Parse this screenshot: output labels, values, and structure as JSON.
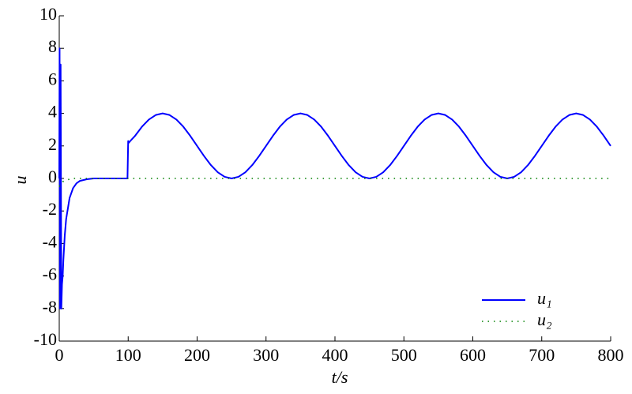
{
  "chart_data": {
    "type": "line",
    "xlabel": "t/s",
    "ylabel": "u",
    "xlim": [
      0,
      800
    ],
    "ylim": [
      -10,
      10
    ],
    "xticks": [
      0,
      100,
      200,
      300,
      400,
      500,
      600,
      700,
      800
    ],
    "yticks": [
      -10,
      -8,
      -6,
      -4,
      -2,
      0,
      2,
      4,
      6,
      8,
      10
    ],
    "legend": "lower right",
    "grid": false,
    "series": [
      {
        "name": "u₁",
        "color": "#0000ff",
        "style": "solid",
        "x": [
          0,
          0.5,
          1,
          2,
          3,
          4,
          5,
          6,
          8,
          10,
          15,
          20,
          25,
          30,
          40,
          50,
          60,
          70,
          80,
          90,
          99,
          100,
          101,
          103,
          110,
          120,
          130,
          140,
          150,
          160,
          170,
          180,
          190,
          200,
          210,
          220,
          230,
          240,
          250,
          260,
          270,
          280,
          290,
          300,
          310,
          320,
          330,
          340,
          350,
          360,
          370,
          380,
          390,
          400,
          410,
          420,
          430,
          440,
          450,
          460,
          470,
          480,
          490,
          500,
          510,
          520,
          530,
          540,
          550,
          560,
          570,
          580,
          590,
          600,
          610,
          620,
          630,
          640,
          650,
          660,
          670,
          680,
          690,
          700,
          710,
          720,
          730,
          740,
          750,
          760,
          770,
          780,
          790,
          800
        ],
        "values": [
          0,
          8,
          -8,
          7,
          -8,
          -6.5,
          -6,
          -5,
          -3.5,
          -2.5,
          -1.2,
          -0.6,
          -0.3,
          -0.15,
          -0.05,
          0,
          0,
          0,
          0,
          0,
          0,
          2.3,
          2.2,
          2.3,
          2.62,
          3.18,
          3.62,
          3.9,
          4,
          3.9,
          3.62,
          3.18,
          2.62,
          2,
          1.38,
          0.82,
          0.38,
          0.1,
          0,
          0.1,
          0.38,
          0.82,
          1.38,
          2,
          2.62,
          3.18,
          3.62,
          3.9,
          4,
          3.9,
          3.62,
          3.18,
          2.62,
          2,
          1.38,
          0.82,
          0.38,
          0.1,
          0,
          0.1,
          0.38,
          0.82,
          1.38,
          2,
          2.62,
          3.18,
          3.62,
          3.9,
          4,
          3.9,
          3.62,
          3.18,
          2.62,
          2,
          1.38,
          0.82,
          0.38,
          0.1,
          0,
          0.1,
          0.38,
          0.82,
          1.38,
          2,
          2.62,
          3.18,
          3.62,
          3.9,
          4,
          3.9,
          3.62,
          3.18,
          2.62,
          2
        ]
      },
      {
        "name": "u₂",
        "color": "#008000",
        "style": "dotted",
        "x": [
          0,
          5,
          10,
          20,
          800
        ],
        "values": [
          -0.5,
          -0.2,
          -0.1,
          0,
          0
        ]
      }
    ]
  }
}
